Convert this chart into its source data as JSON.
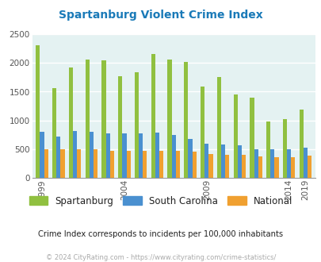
{
  "title": "Spartanburg Violent Crime Index",
  "subtitle": "Crime Index corresponds to incidents per 100,000 inhabitants",
  "copyright": "© 2024 CityRating.com - https://www.cityrating.com/crime-statistics/",
  "years": [
    1999,
    2000,
    2001,
    2002,
    2003,
    2004,
    2005,
    2006,
    2007,
    2008,
    2009,
    2010,
    2011,
    2012,
    2013,
    2014,
    2015,
    2016,
    2019
  ],
  "spartanburg": [
    2300,
    1560,
    1920,
    2060,
    2040,
    1775,
    1840,
    2150,
    2060,
    2020,
    1590,
    1750,
    1450,
    1400,
    980,
    1025,
    0,
    0,
    1195
  ],
  "south_carolina": [
    800,
    720,
    820,
    800,
    780,
    780,
    775,
    790,
    750,
    680,
    600,
    580,
    570,
    500,
    500,
    500,
    0,
    0,
    525
  ],
  "national": [
    500,
    500,
    500,
    500,
    470,
    470,
    470,
    475,
    470,
    455,
    420,
    405,
    410,
    375,
    365,
    370,
    0,
    0,
    390
  ],
  "spartanburg_color": "#90c040",
  "sc_color": "#4a90d0",
  "national_color": "#f0a030",
  "background_color": "#e4f2f2",
  "title_color": "#1a7ab8",
  "subtitle_color": "#222222",
  "copyright_color": "#aaaaaa",
  "ylim": [
    0,
    2500
  ],
  "yticks": [
    0,
    500,
    1000,
    1500,
    2000,
    2500
  ],
  "bar_width": 0.25,
  "legend_labels": [
    "Spartanburg",
    "South Carolina",
    "National"
  ],
  "label_years": [
    1999,
    2004,
    2009,
    2014,
    2019
  ]
}
